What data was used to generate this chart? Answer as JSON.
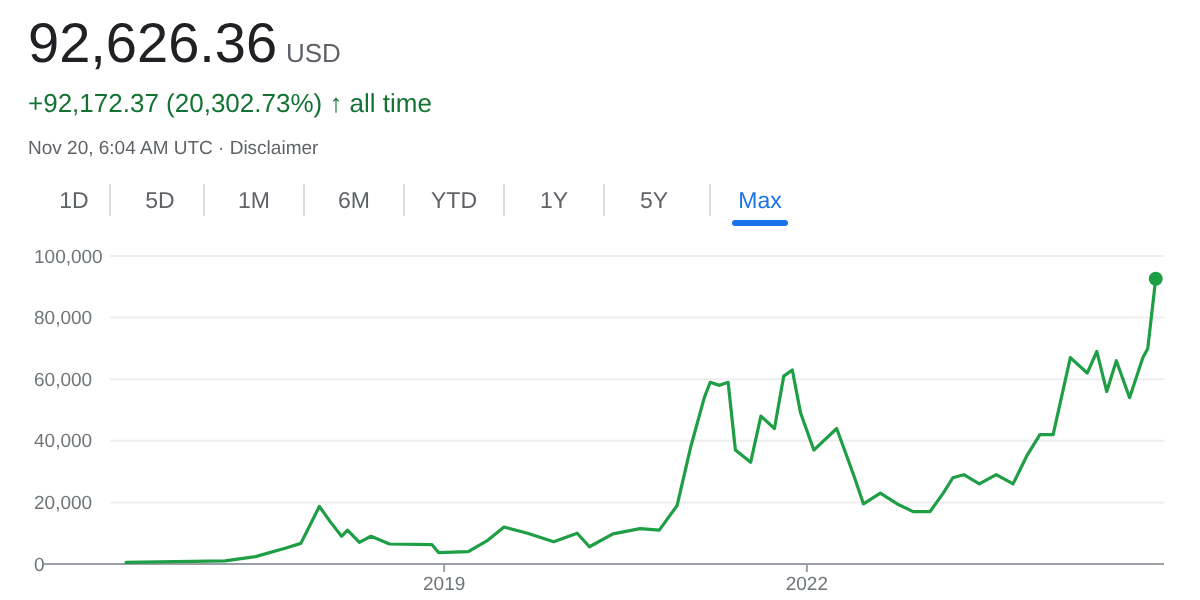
{
  "chart_data": {
    "type": "line",
    "title": "92,626.36",
    "subtitle": "+92,172.37 (20,302.73%) ↑ all time",
    "annotations": [
      "USD",
      "Nov 20, 6:04 AM UTC · Disclaimer",
      "1D",
      "5D",
      "1M",
      "6M",
      "YTD",
      "1Y",
      "5Y",
      "Max"
    ],
    "xlim": [
      "2015-09-10",
      "2024-12-15"
    ],
    "xticks": [
      {
        "value": "2019-01-01",
        "label": "2019"
      },
      {
        "value": "2022-01-01",
        "label": "2022"
      }
    ],
    "ylim": [
      0,
      100000
    ],
    "yticks": [
      {
        "value": 0,
        "label": "0"
      },
      {
        "value": 20000,
        "label": "20,000"
      },
      {
        "value": 40000,
        "label": "40,000"
      },
      {
        "value": 60000,
        "label": "60,000"
      },
      {
        "value": 80000,
        "label": "80,000"
      },
      {
        "value": 100000,
        "label": "100,000"
      }
    ],
    "grid": "y",
    "series": [
      {
        "color": "#1e9e45",
        "x": [
          "2016-05-15",
          "2017-03-10",
          "2017-06-10",
          "2017-09-10",
          "2017-10-25",
          "2017-12-20",
          "2018-01-20",
          "2018-02-25",
          "2018-03-15",
          "2018-04-20",
          "2018-05-25",
          "2018-07-20",
          "2018-11-25",
          "2018-12-15",
          "2019-03-15",
          "2019-05-10",
          "2019-07-01",
          "2019-09-10",
          "2019-11-28",
          "2020-02-07",
          "2020-03-15",
          "2020-05-25",
          "2020-08-15",
          "2020-10-12",
          "2020-12-05",
          "2021-01-15",
          "2021-02-25",
          "2021-03-15",
          "2021-04-12",
          "2021-05-08",
          "2021-05-30",
          "2021-07-15",
          "2021-08-15",
          "2021-09-25",
          "2021-10-23",
          "2021-11-18",
          "2021-12-13",
          "2022-01-22",
          "2022-04-01",
          "2022-05-22",
          "2022-06-21",
          "2022-08-11",
          "2022-10-01",
          "2022-11-18",
          "2023-01-08",
          "2023-02-17",
          "2023-03-18",
          "2023-04-20",
          "2023-06-06",
          "2023-07-27",
          "2023-09-16",
          "2023-10-27",
          "2023-12-06",
          "2024-01-15",
          "2024-03-07",
          "2024-04-27",
          "2024-05-26",
          "2024-06-25",
          "2024-07-24",
          "2024-09-02",
          "2024-10-12",
          "2024-10-27",
          "2024-11-20"
        ],
        "values": [
          500,
          1000,
          2400,
          5200,
          6700,
          18700,
          14000,
          9000,
          11000,
          7000,
          9000,
          6500,
          6300,
          3700,
          4000,
          7500,
          12000,
          10000,
          7200,
          10000,
          5600,
          9800,
          11500,
          11000,
          19000,
          38000,
          54000,
          59000,
          58000,
          59000,
          37000,
          33000,
          48000,
          44000,
          61000,
          63000,
          49000,
          37000,
          44000,
          29000,
          19500,
          23000,
          19500,
          17000,
          17000,
          23000,
          28000,
          29000,
          26000,
          29000,
          26000,
          35000,
          42000,
          42000,
          67000,
          62000,
          69000,
          56000,
          66000,
          54000,
          67000,
          70000,
          92600
        ]
      },
      {
        "type": "scatter",
        "color": "#1e9e45",
        "marker": "circle",
        "x": [
          "2024-11-20"
        ],
        "values": [
          92600
        ]
      }
    ]
  }
}
